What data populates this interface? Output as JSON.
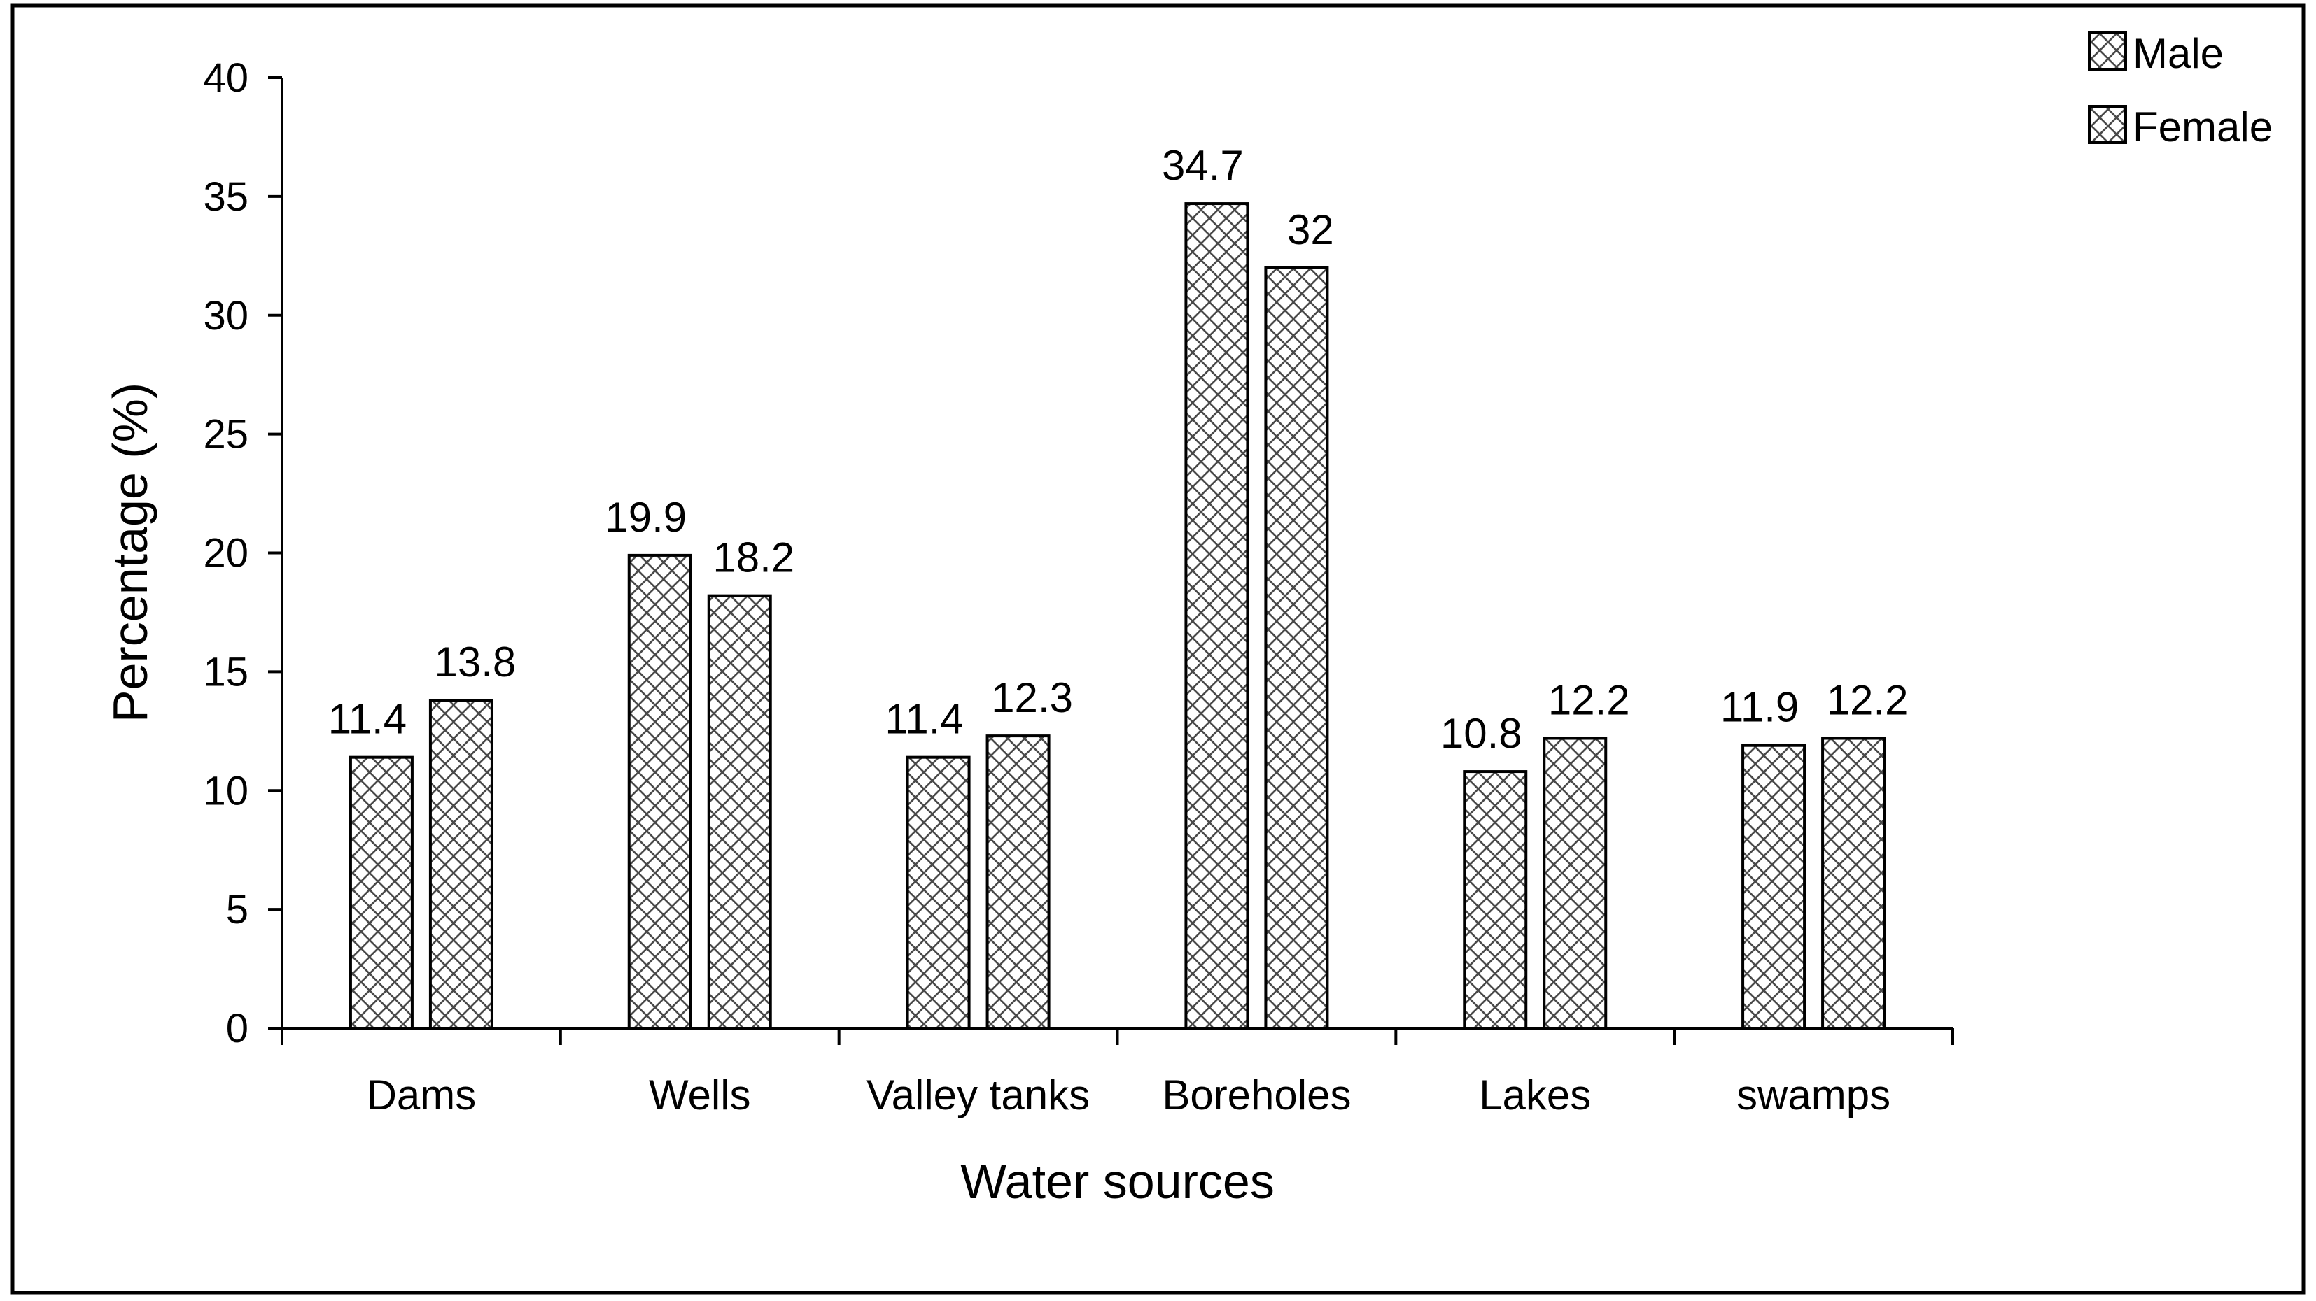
{
  "chart_data": {
    "type": "bar",
    "title": "",
    "xlabel": "Water sources",
    "ylabel": "Percentage (%)",
    "ylim": [
      0,
      40
    ],
    "yticks": [
      0,
      5,
      10,
      15,
      20,
      25,
      30,
      35,
      40
    ],
    "categories": [
      "Dams",
      "Wells",
      "Valley tanks",
      "Boreholes",
      "Lakes",
      "swamps"
    ],
    "series": [
      {
        "name": "Male",
        "values": [
          11.4,
          19.9,
          11.4,
          34.7,
          10.8,
          11.9
        ]
      },
      {
        "name": "Female",
        "values": [
          13.8,
          18.2,
          12.3,
          32,
          12.2,
          12.2
        ]
      }
    ],
    "data_labels": [
      [
        "11.4",
        "19.9",
        "11.4",
        "34.7",
        "10.8",
        "11.9"
      ],
      [
        "13.8",
        "18.2",
        "12.3",
        "32",
        "12.2",
        "12.2"
      ]
    ],
    "grid": false,
    "legend_position": "top-right",
    "pattern": "crosshatch",
    "bar_fill": "#ffffff",
    "bar_stroke": "#000000",
    "hatch_color": "#4a4a4a"
  }
}
